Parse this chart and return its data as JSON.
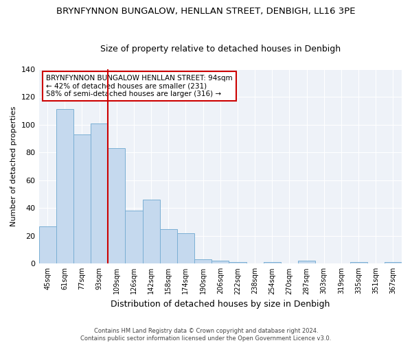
{
  "title1": "BRYNFYNNON BUNGALOW, HENLLAN STREET, DENBIGH, LL16 3PE",
  "title2": "Size of property relative to detached houses in Denbigh",
  "xlabel": "Distribution of detached houses by size in Denbigh",
  "ylabel": "Number of detached properties",
  "categories": [
    "45sqm",
    "61sqm",
    "77sqm",
    "93sqm",
    "109sqm",
    "126sqm",
    "142sqm",
    "158sqm",
    "174sqm",
    "190sqm",
    "206sqm",
    "222sqm",
    "238sqm",
    "254sqm",
    "270sqm",
    "287sqm",
    "303sqm",
    "319sqm",
    "335sqm",
    "351sqm",
    "367sqm"
  ],
  "values": [
    27,
    111,
    93,
    101,
    83,
    38,
    46,
    25,
    22,
    3,
    2,
    1,
    0,
    1,
    0,
    2,
    0,
    0,
    1,
    0,
    1
  ],
  "bar_color": "#c5d9ee",
  "bar_edge_color": "#7aafd4",
  "vline_x_index": 3,
  "vline_color": "#cc0000",
  "annotation_title": "BRYNFYNNON BUNGALOW HENLLAN STREET: 94sqm",
  "annotation_line2": "← 42% of detached houses are smaller (231)",
  "annotation_line3": "58% of semi-detached houses are larger (316) →",
  "annotation_box_color": "#cc0000",
  "annotation_box_fill": "#ffffff",
  "ylim": [
    0,
    140
  ],
  "yticks": [
    0,
    20,
    40,
    60,
    80,
    100,
    120,
    140
  ],
  "footer1": "Contains HM Land Registry data © Crown copyright and database right 2024.",
  "footer2": "Contains public sector information licensed under the Open Government Licence v3.0.",
  "bg_color": "#ffffff",
  "plot_bg_color": "#eef2f8",
  "grid_color": "#ffffff",
  "title1_fontsize": 9.5,
  "title2_fontsize": 9
}
